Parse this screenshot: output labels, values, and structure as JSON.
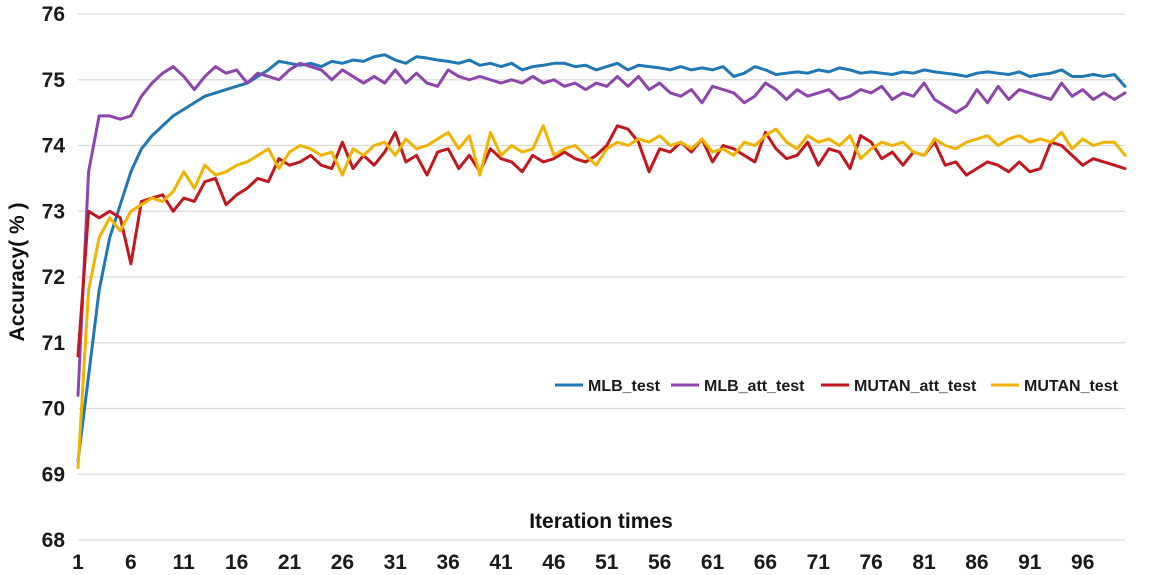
{
  "chart_data": {
    "type": "line",
    "title": "",
    "xlabel": "Iteration times",
    "ylabel": "Accuracy( % )",
    "xlim": [
      1,
      100
    ],
    "ylim": [
      68,
      76
    ],
    "yticks": [
      68,
      69,
      70,
      71,
      72,
      73,
      74,
      75,
      76
    ],
    "xticks": [
      1,
      6,
      11,
      16,
      21,
      26,
      31,
      36,
      41,
      46,
      51,
      56,
      61,
      66,
      71,
      76,
      81,
      86,
      91,
      96
    ],
    "grid": true,
    "legend_position": "bottom-right",
    "x": [
      1,
      2,
      3,
      4,
      5,
      6,
      7,
      8,
      9,
      10,
      11,
      12,
      13,
      14,
      15,
      16,
      17,
      18,
      19,
      20,
      21,
      22,
      23,
      24,
      25,
      26,
      27,
      28,
      29,
      30,
      31,
      32,
      33,
      34,
      35,
      36,
      37,
      38,
      39,
      40,
      41,
      42,
      43,
      44,
      45,
      46,
      47,
      48,
      49,
      50,
      51,
      52,
      53,
      54,
      55,
      56,
      57,
      58,
      59,
      60,
      61,
      62,
      63,
      64,
      65,
      66,
      67,
      68,
      69,
      70,
      71,
      72,
      73,
      74,
      75,
      76,
      77,
      78,
      79,
      80,
      81,
      82,
      83,
      84,
      85,
      86,
      87,
      88,
      89,
      90,
      91,
      92,
      93,
      94,
      95,
      96,
      97,
      98,
      99,
      100
    ],
    "series": [
      {
        "name": "MLB_test",
        "color": "#1f77b4",
        "values": [
          69.2,
          70.5,
          71.8,
          72.6,
          73.1,
          73.6,
          73.95,
          74.15,
          74.3,
          74.45,
          74.55,
          74.65,
          74.75,
          74.8,
          74.85,
          74.9,
          74.95,
          75.05,
          75.15,
          75.28,
          75.25,
          75.22,
          75.25,
          75.2,
          75.28,
          75.25,
          75.3,
          75.28,
          75.35,
          75.38,
          75.3,
          75.25,
          75.35,
          75.33,
          75.3,
          75.28,
          75.25,
          75.3,
          75.22,
          75.25,
          75.2,
          75.25,
          75.15,
          75.2,
          75.22,
          75.25,
          75.25,
          75.2,
          75.22,
          75.15,
          75.2,
          75.25,
          75.15,
          75.22,
          75.2,
          75.18,
          75.15,
          75.2,
          75.15,
          75.18,
          75.15,
          75.2,
          75.05,
          75.1,
          75.2,
          75.15,
          75.08,
          75.1,
          75.12,
          75.1,
          75.15,
          75.12,
          75.18,
          75.15,
          75.1,
          75.12,
          75.1,
          75.08,
          75.12,
          75.1,
          75.15,
          75.12,
          75.1,
          75.08,
          75.05,
          75.1,
          75.12,
          75.1,
          75.08,
          75.12,
          75.05,
          75.08,
          75.1,
          75.15,
          75.05,
          75.05,
          75.08,
          75.05,
          75.08,
          74.9
        ]
      },
      {
        "name": "MLB_att_test",
        "color": "#8e44ad",
        "values": [
          70.2,
          73.6,
          74.45,
          74.45,
          74.4,
          74.45,
          74.75,
          74.95,
          75.1,
          75.2,
          75.05,
          74.85,
          75.05,
          75.2,
          75.1,
          75.15,
          74.95,
          75.1,
          75.05,
          75.0,
          75.15,
          75.25,
          75.2,
          75.15,
          75.0,
          75.15,
          75.05,
          74.95,
          75.05,
          74.95,
          75.15,
          74.95,
          75.1,
          74.95,
          74.9,
          75.15,
          75.05,
          75.0,
          75.05,
          75.0,
          74.95,
          75.0,
          74.95,
          75.05,
          74.95,
          75.0,
          74.9,
          74.95,
          74.85,
          74.95,
          74.9,
          75.05,
          74.9,
          75.05,
          74.85,
          74.95,
          74.8,
          74.75,
          74.85,
          74.65,
          74.9,
          74.85,
          74.8,
          74.65,
          74.75,
          74.95,
          74.85,
          74.7,
          74.85,
          74.75,
          74.8,
          74.85,
          74.7,
          74.75,
          74.85,
          74.8,
          74.9,
          74.7,
          74.8,
          74.75,
          74.95,
          74.7,
          74.6,
          74.5,
          74.6,
          74.85,
          74.65,
          74.9,
          74.7,
          74.85,
          74.8,
          74.75,
          74.7,
          74.95,
          74.75,
          74.85,
          74.7,
          74.8,
          74.7,
          74.8
        ]
      },
      {
        "name": "MUTAN_att_test",
        "color": "#c0181e",
        "values": [
          70.8,
          73.0,
          72.9,
          73.0,
          72.9,
          72.2,
          73.15,
          73.2,
          73.25,
          73.0,
          73.2,
          73.15,
          73.45,
          73.5,
          73.1,
          73.25,
          73.35,
          73.5,
          73.45,
          73.8,
          73.7,
          73.75,
          73.85,
          73.7,
          73.65,
          74.05,
          73.65,
          73.85,
          73.7,
          73.9,
          74.2,
          73.75,
          73.85,
          73.55,
          73.9,
          73.95,
          73.65,
          73.85,
          73.6,
          73.95,
          73.8,
          73.75,
          73.6,
          73.85,
          73.75,
          73.8,
          73.9,
          73.8,
          73.75,
          73.85,
          74.0,
          74.3,
          74.25,
          74.05,
          73.6,
          73.95,
          73.9,
          74.05,
          73.9,
          74.1,
          73.75,
          74.0,
          73.95,
          73.85,
          73.75,
          74.2,
          73.95,
          73.8,
          73.85,
          74.05,
          73.7,
          73.95,
          73.9,
          73.65,
          74.15,
          74.05,
          73.8,
          73.9,
          73.7,
          73.9,
          73.85,
          74.05,
          73.7,
          73.75,
          73.55,
          73.65,
          73.75,
          73.7,
          73.6,
          73.75,
          73.6,
          73.65,
          74.05,
          74.0,
          73.85,
          73.7,
          73.8,
          73.75,
          73.7,
          73.65
        ]
      },
      {
        "name": "MUTAN_test",
        "color": "#f0b400",
        "values": [
          69.1,
          71.8,
          72.6,
          72.9,
          72.7,
          73.0,
          73.1,
          73.2,
          73.15,
          73.3,
          73.6,
          73.35,
          73.7,
          73.55,
          73.6,
          73.7,
          73.75,
          73.85,
          73.95,
          73.65,
          73.9,
          74.0,
          73.95,
          73.85,
          73.9,
          73.55,
          73.95,
          73.85,
          74.0,
          74.05,
          73.85,
          74.1,
          73.95,
          74.0,
          74.1,
          74.2,
          73.95,
          74.15,
          73.55,
          74.2,
          73.85,
          74.0,
          73.9,
          73.95,
          74.3,
          73.85,
          73.95,
          74.0,
          73.85,
          73.7,
          73.95,
          74.05,
          74.0,
          74.1,
          74.05,
          74.15,
          74.0,
          74.05,
          73.95,
          74.1,
          73.9,
          73.95,
          73.85,
          74.05,
          74.0,
          74.15,
          74.25,
          74.05,
          73.95,
          74.15,
          74.05,
          74.1,
          74.0,
          74.15,
          73.8,
          73.95,
          74.05,
          74.0,
          74.05,
          73.9,
          73.85,
          74.1,
          74.0,
          73.95,
          74.05,
          74.1,
          74.15,
          74.0,
          74.1,
          74.15,
          74.05,
          74.1,
          74.05,
          74.2,
          73.95,
          74.1,
          74.0,
          74.05,
          74.05,
          73.85
        ]
      }
    ]
  }
}
